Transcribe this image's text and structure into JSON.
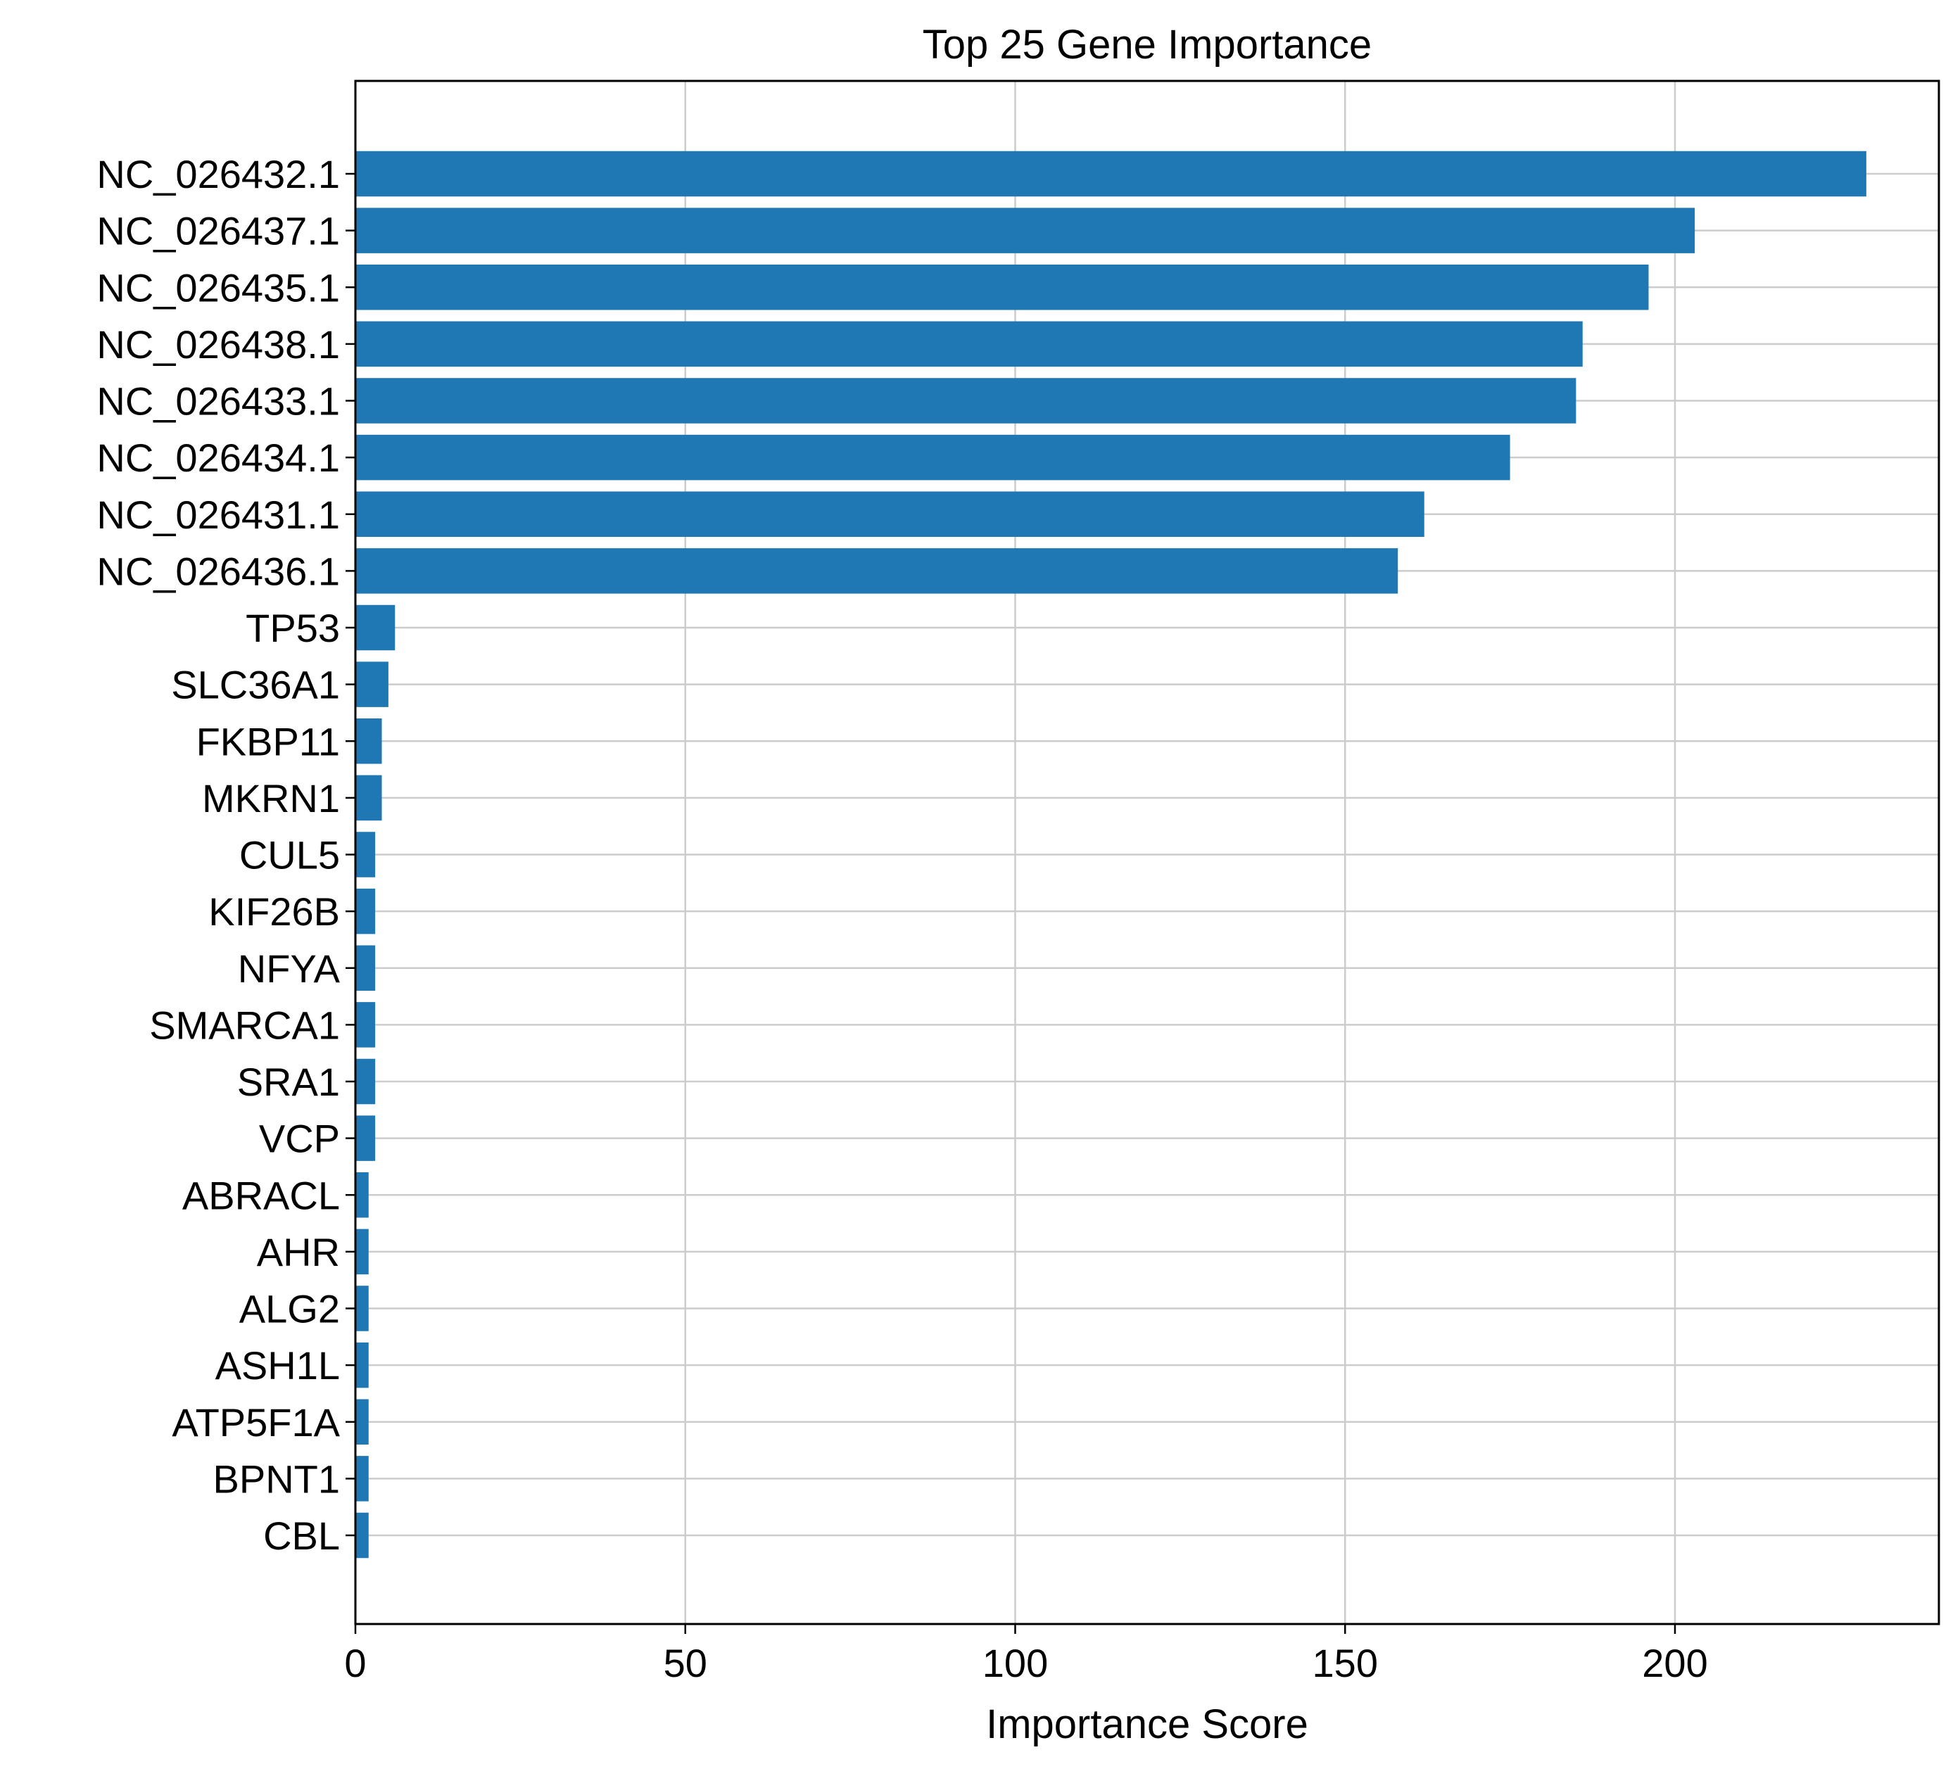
{
  "chart_data": {
    "type": "bar",
    "orientation": "horizontal",
    "title": "Top 25 Gene Importance",
    "xlabel": "Importance Score",
    "ylabel": "",
    "xlim": [
      0,
      240
    ],
    "xticks": [
      0,
      50,
      100,
      150,
      200
    ],
    "grid": true,
    "bar_color": "#1f77b4",
    "categories": [
      "NC_026432.1",
      "NC_026437.1",
      "NC_026435.1",
      "NC_026438.1",
      "NC_026433.1",
      "NC_026434.1",
      "NC_026431.1",
      "NC_026436.1",
      "TP53",
      "SLC36A1",
      "FKBP11",
      "MKRN1",
      "CUL5",
      "KIF26B",
      "NFYA",
      "SMARCA1",
      "SRA1",
      "VCP",
      "ABRACL",
      "AHR",
      "ALG2",
      "ASH1L",
      "ATP5F1A",
      "BPNT1",
      "CBL"
    ],
    "values": [
      229,
      203,
      196,
      186,
      185,
      175,
      162,
      158,
      6,
      5,
      4,
      4,
      3,
      3,
      3,
      3,
      3,
      3,
      2,
      2,
      2,
      2,
      2,
      2,
      2
    ]
  }
}
